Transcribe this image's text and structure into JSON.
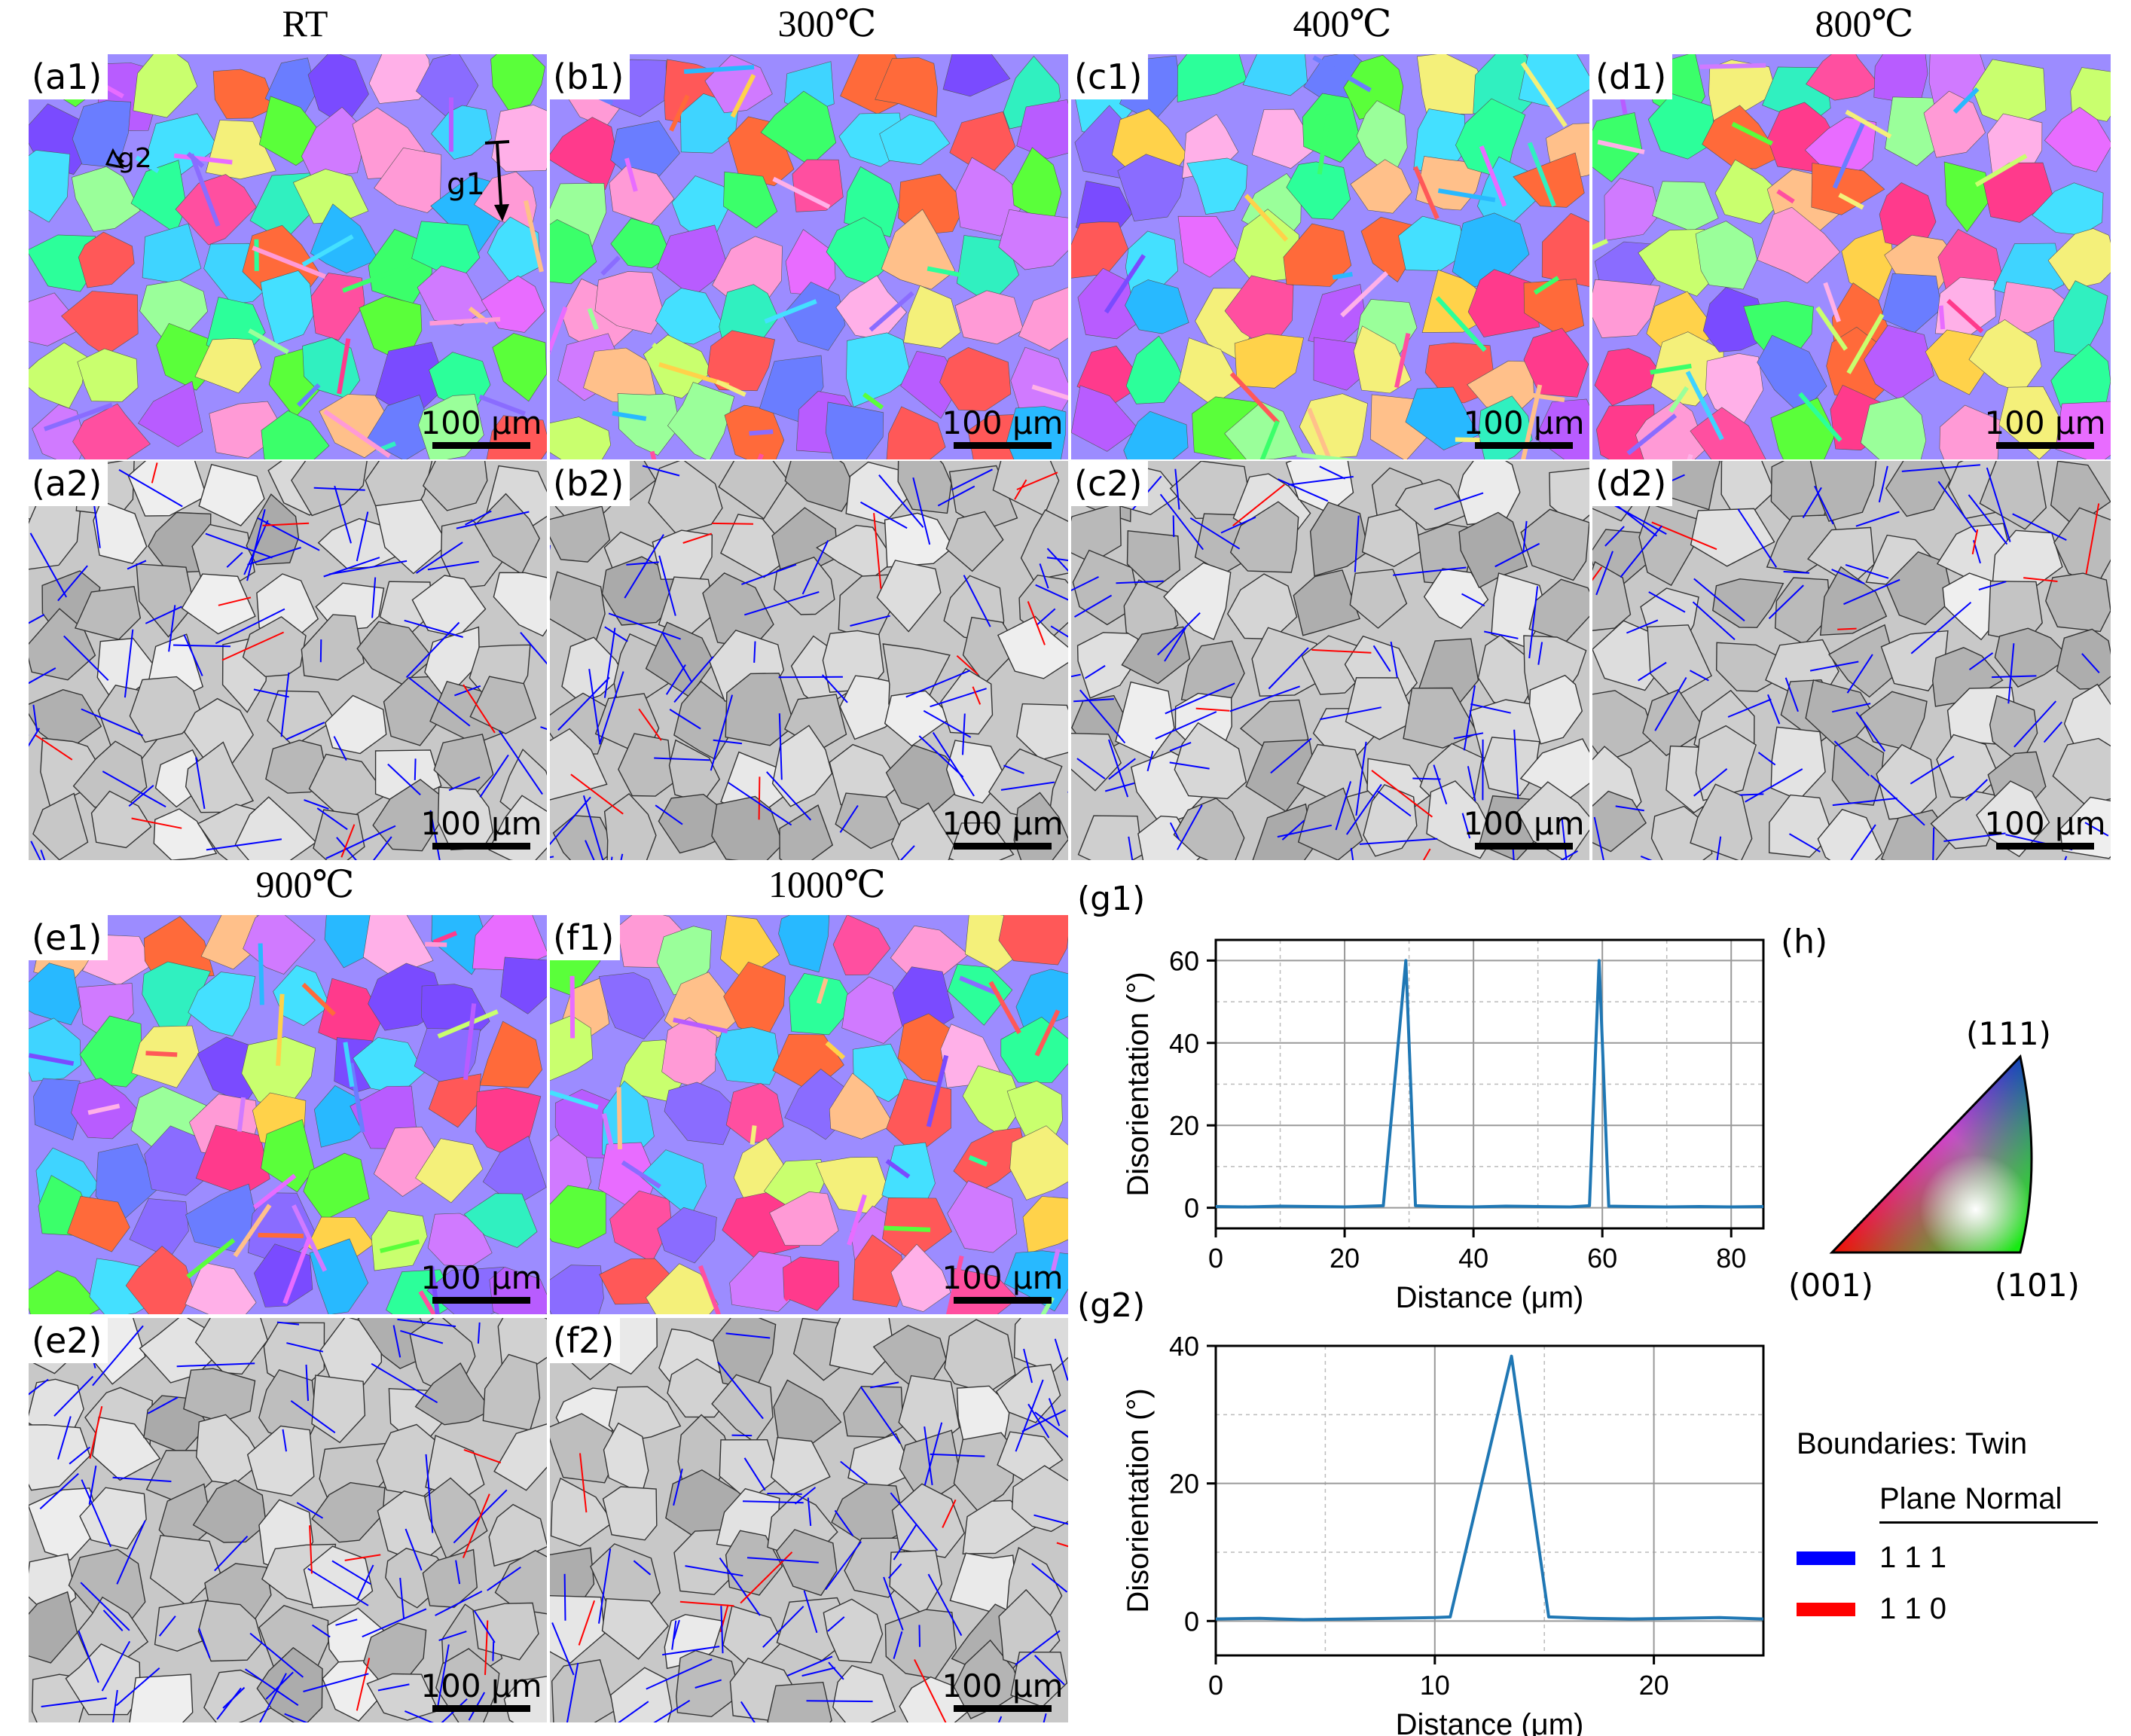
{
  "columns": {
    "rt": "RT",
    "c300": "300℃",
    "c400": "400℃",
    "c800": "800℃",
    "c900": "900℃",
    "c1000": "1000℃"
  },
  "panels": {
    "a1": "(a1)",
    "b1": "(b1)",
    "c1": "(c1)",
    "d1": "(d1)",
    "a2": "(a2)",
    "b2": "(b2)",
    "c2": "(c2)",
    "d2": "(d2)",
    "e1": "(e1)",
    "f1": "(f1)",
    "e2": "(e2)",
    "f2": "(f2)",
    "g1": "(g1)",
    "g2": "(g2)",
    "h": "(h)"
  },
  "scale_bar": "100 μm",
  "line_markers": {
    "g1": "g1",
    "g2": "g2"
  },
  "ipf": {
    "top": "(111)",
    "left": "(001)",
    "right": "(101)"
  },
  "legend": {
    "title": "Boundaries: Twin",
    "subtitle": "Plane Normal",
    "items": [
      {
        "label": "1 1 1",
        "color": "#0000ff"
      },
      {
        "label": "1 1 0",
        "color": "#ff0000"
      }
    ]
  },
  "chart_data": [
    {
      "id": "g1",
      "type": "line",
      "xlabel": "Distance (μm)",
      "ylabel": "Disorientation (°)",
      "xlim": [
        0,
        85
      ],
      "ylim": [
        -5,
        65
      ],
      "xticks": [
        "0",
        "20",
        "40",
        "60",
        "80"
      ],
      "yticks": [
        "0",
        "20",
        "40",
        "60"
      ],
      "series": [
        {
          "name": "profile",
          "color": "#1f77b4",
          "x": [
            0,
            5,
            10,
            15,
            20,
            26,
            29.5,
            31,
            35,
            40,
            45,
            50,
            55,
            58,
            59.5,
            61,
            65,
            70,
            75,
            80,
            85
          ],
          "y": [
            0.3,
            0.2,
            0.4,
            0.3,
            0.2,
            0.5,
            60,
            0.5,
            0.3,
            0.2,
            0.4,
            0.3,
            0.2,
            0.5,
            60,
            0.4,
            0.3,
            0.2,
            0.3,
            0.2,
            0.3
          ]
        }
      ]
    },
    {
      "id": "g2",
      "type": "line",
      "xlabel": "Distance (μm)",
      "ylabel": "Disorientation (°)",
      "xlim": [
        0,
        25
      ],
      "ylim": [
        -5,
        40
      ],
      "xticks": [
        "0",
        "10",
        "20"
      ],
      "yticks": [
        "0",
        "20",
        "40"
      ],
      "series": [
        {
          "name": "profile",
          "color": "#1f77b4",
          "x": [
            0,
            2,
            4,
            6,
            8,
            10,
            10.7,
            13.5,
            15.2,
            17,
            19,
            21,
            23,
            25
          ],
          "y": [
            0.3,
            0.4,
            0.2,
            0.3,
            0.4,
            0.5,
            0.6,
            38.5,
            0.6,
            0.4,
            0.3,
            0.4,
            0.5,
            0.3
          ]
        }
      ]
    }
  ]
}
